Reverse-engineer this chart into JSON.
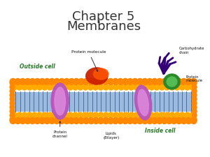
{
  "title_line1": "Chapter 5",
  "title_line2": "Membranes",
  "title_fontsize": 13,
  "title_color": "#333333",
  "bg_color": "#ffffff",
  "bilayer_interior_color": "#99BBDD",
  "phospholipid_head_color": "#FF8800",
  "phospholipid_head_color2": "#FFAA00",
  "stripe_color": "#334488",
  "protein_channel_color": "#BB55BB",
  "protein_channel_highlight": "#DD88DD",
  "protein_surface_color1": "#CC2200",
  "protein_surface_color2": "#FF5500",
  "protein_green_color": "#2A8A2A",
  "protein_green_highlight": "#55BB55",
  "carbohydrate_color": "#330077",
  "label_outside": "Outside cell",
  "label_inside": "Inside cell",
  "label_protein_mol_top": "Protein molecule",
  "label_carb_line1": "Carbohydrate",
  "label_carb_line2": "chain",
  "label_protein_mol2_line1": "Protein",
  "label_protein_mol2_line2": "molecule",
  "label_protein_ch_line1": "Protein",
  "label_protein_ch_line2": "channel",
  "label_lipid_line1": "Lipids",
  "label_lipid_line2": "(Bilayer)",
  "label_color": "#111111",
  "label_italic_color": "#2A7A2A"
}
